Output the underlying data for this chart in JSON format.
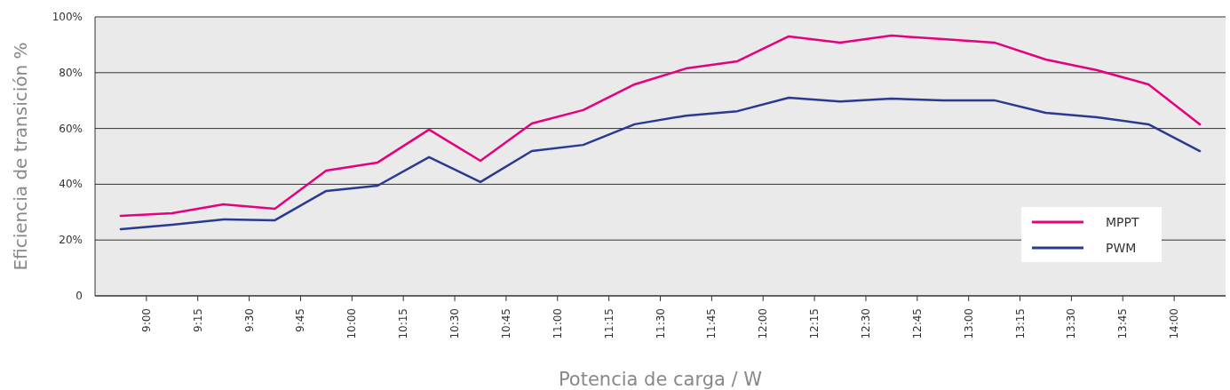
{
  "chart_data": {
    "type": "line",
    "xlabel": "Potencia de carga / W",
    "ylabel": "Eficiencia de transición %",
    "x": [
      8.875,
      9.125,
      9.375,
      9.625,
      9.875,
      10.125,
      10.375,
      10.625,
      10.875,
      11.125,
      11.375,
      11.625,
      11.875,
      12.125,
      12.375,
      12.625,
      12.875,
      13.125,
      13.375,
      13.625,
      13.875,
      14.125
    ],
    "series": [
      {
        "name": "MPPT",
        "color": "#e6007e",
        "values": [
          28.7,
          29.6,
          32.8,
          31.2,
          44.9,
          47.8,
          59.6,
          48.4,
          61.8,
          66.6,
          75.8,
          81.5,
          84.1,
          93.0,
          90.8,
          93.3,
          92.0,
          90.8,
          84.7,
          80.9,
          75.8,
          61.5
        ]
      },
      {
        "name": "PWM",
        "color": "#2b3990",
        "values": [
          23.9,
          25.5,
          27.4,
          27.1,
          37.6,
          39.5,
          49.7,
          40.8,
          51.9,
          54.1,
          61.5,
          64.6,
          66.2,
          71.0,
          69.7,
          70.7,
          70.1,
          70.1,
          65.6,
          64.0,
          61.5,
          51.9
        ]
      }
    ],
    "xlim": [
      8.75,
      14.25
    ],
    "xticks": [
      {
        "value": 9,
        "label": "9:00"
      },
      {
        "value": 9.25,
        "label": "9:15"
      },
      {
        "value": 9.5,
        "label": "9:30"
      },
      {
        "value": 9.75,
        "label": "9:45"
      },
      {
        "value": 10,
        "label": "10:00"
      },
      {
        "value": 10.25,
        "label": "10:15"
      },
      {
        "value": 10.5,
        "label": "10:30"
      },
      {
        "value": 10.75,
        "label": "10:45"
      },
      {
        "value": 11,
        "label": "11:00"
      },
      {
        "value": 11.25,
        "label": "11:15"
      },
      {
        "value": 11.5,
        "label": "11:30"
      },
      {
        "value": 11.75,
        "label": "11:45"
      },
      {
        "value": 12,
        "label": "12:00"
      },
      {
        "value": 12.25,
        "label": "12:15"
      },
      {
        "value": 12.5,
        "label": "12:30"
      },
      {
        "value": 12.75,
        "label": "12:45"
      },
      {
        "value": 13,
        "label": "13:00"
      },
      {
        "value": 13.25,
        "label": "13:15"
      },
      {
        "value": 13.5,
        "label": "13:30"
      },
      {
        "value": 13.75,
        "label": "13:45"
      },
      {
        "value": 14,
        "label": "14:00"
      }
    ],
    "ylim": [
      0,
      100
    ],
    "yticks": [
      0,
      {
        "value": 20,
        "label": "20%"
      },
      {
        "value": 40,
        "label": "40%"
      },
      {
        "value": 60,
        "label": "60%"
      },
      {
        "value": 80,
        "label": "80%"
      },
      {
        "value": 100,
        "label": "100%"
      }
    ],
    "grid": "y",
    "legend": "bottom right",
    "marker": "none",
    "line_style": "solid"
  }
}
